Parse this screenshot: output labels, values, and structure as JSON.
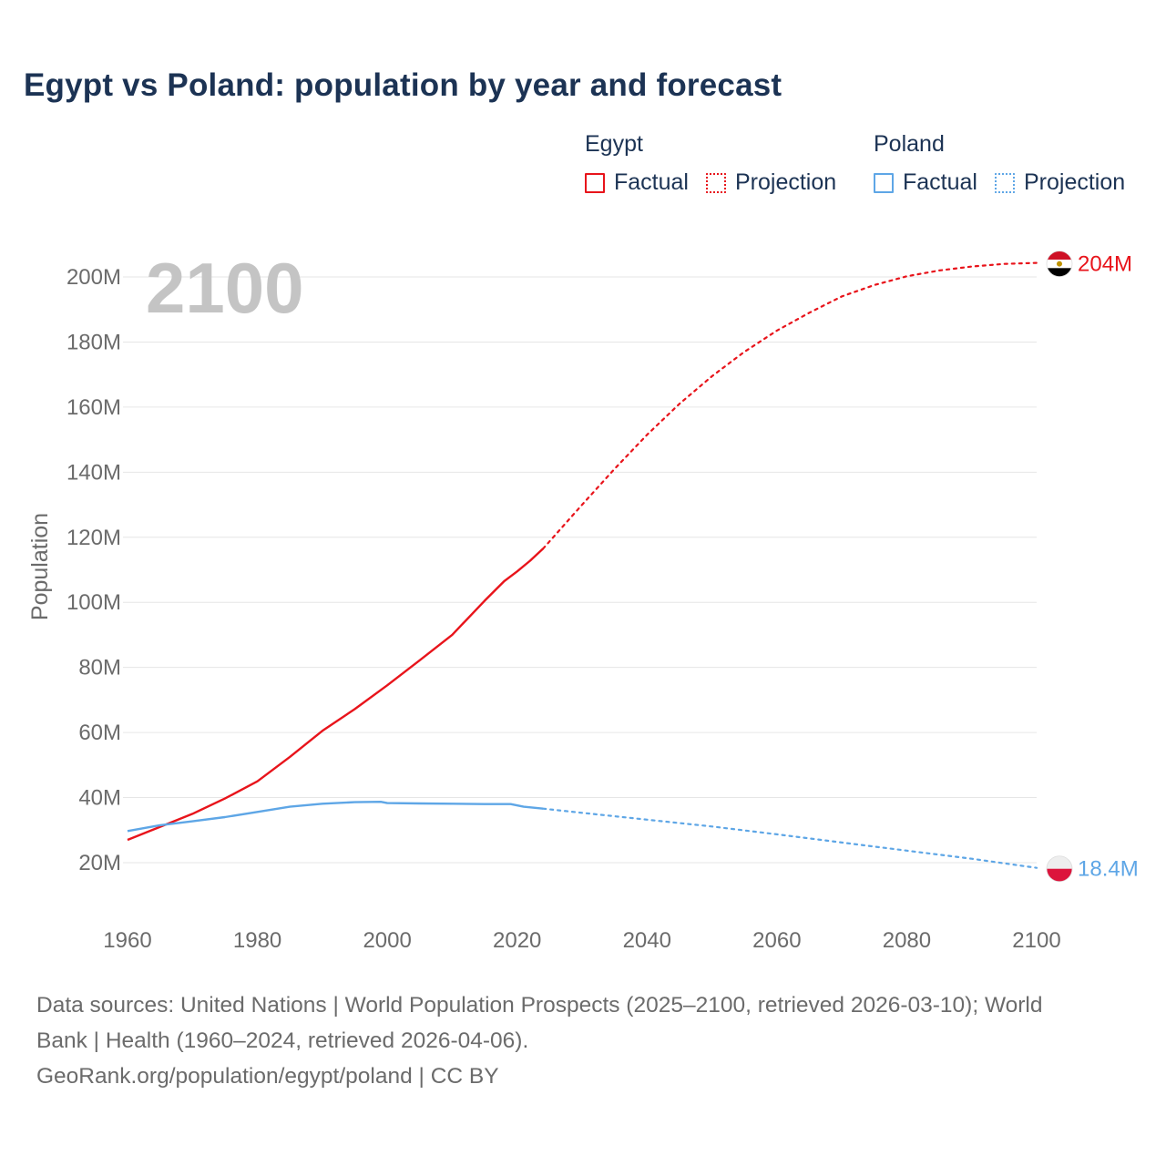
{
  "title": "Egypt vs Poland: population by year and forecast",
  "legend": {
    "groups": [
      {
        "name": "Egypt",
        "color": "#e8141b",
        "items": [
          {
            "label": "Factual",
            "style": "solid"
          },
          {
            "label": "Projection",
            "style": "dotted"
          }
        ]
      },
      {
        "name": "Poland",
        "color": "#5ea6e6",
        "items": [
          {
            "label": "Factual",
            "style": "solid"
          },
          {
            "label": "Projection",
            "style": "dotted"
          }
        ]
      }
    ]
  },
  "sources": {
    "line1": "Data sources: United Nations | World Population Prospects (2025–2100, retrieved 2026-03-10); World",
    "line2": "Bank | Health (1960–2024, retrieved 2026-04-06).",
    "line3": "GeoRank.org/population/egypt/poland | CC BY"
  },
  "chart_data": {
    "type": "line",
    "title": "Egypt vs Poland: population by year and forecast",
    "ylabel": "Population",
    "xlabel": "",
    "current_year_label": "2100",
    "xlim": [
      1960,
      2100
    ],
    "ylim": [
      10000000,
      210000000
    ],
    "x_ticks": [
      1960,
      1980,
      2000,
      2020,
      2040,
      2060,
      2080,
      2100
    ],
    "x_tick_labels": [
      "1960",
      "1980",
      "2000",
      "2020",
      "2040",
      "2060",
      "2080",
      "2100"
    ],
    "y_ticks": [
      20000000,
      40000000,
      60000000,
      80000000,
      100000000,
      120000000,
      140000000,
      160000000,
      180000000,
      200000000
    ],
    "y_tick_labels": [
      "20M",
      "40M",
      "60M",
      "80M",
      "100M",
      "120M",
      "140M",
      "160M",
      "180M",
      "200M"
    ],
    "grid": true,
    "series": [
      {
        "name": "Egypt",
        "color": "#e8141b",
        "end_label": "204M",
        "flag_colors": [
          "#ce1126",
          "#ffffff",
          "#000000"
        ],
        "factual": {
          "x": [
            1960,
            1965,
            1970,
            1975,
            1980,
            1985,
            1990,
            1995,
            2000,
            2005,
            2010,
            2015,
            2018,
            2020,
            2022,
            2024
          ],
          "y": [
            27000000,
            31000000,
            35000000,
            39700000,
            45000000,
            52500000,
            60500000,
            67200000,
            74500000,
            82200000,
            90000000,
            100500000,
            106500000,
            109500000,
            112800000,
            116500000
          ]
        },
        "projection": {
          "x": [
            2024,
            2030,
            2035,
            2040,
            2045,
            2050,
            2055,
            2060,
            2065,
            2070,
            2075,
            2080,
            2085,
            2090,
            2095,
            2100
          ],
          "y": [
            116500000,
            130000000,
            141000000,
            151500000,
            161000000,
            169500000,
            177000000,
            183500000,
            189000000,
            194000000,
            197500000,
            200200000,
            202000000,
            203200000,
            204000000,
            204300000
          ]
        }
      },
      {
        "name": "Poland",
        "color": "#5ea6e6",
        "end_label": "18.4M",
        "flag_colors": [
          "#eeeeee",
          "#dc143c"
        ],
        "factual": {
          "x": [
            1960,
            1965,
            1970,
            1975,
            1980,
            1985,
            1990,
            1995,
            1999,
            2000,
            2005,
            2010,
            2015,
            2019,
            2021,
            2024
          ],
          "y": [
            29700000,
            31500000,
            32700000,
            34000000,
            35600000,
            37200000,
            38100000,
            38600000,
            38700000,
            38300000,
            38200000,
            38100000,
            38000000,
            38000000,
            37200000,
            36600000
          ]
        },
        "projection": {
          "x": [
            2024,
            2030,
            2040,
            2050,
            2060,
            2070,
            2080,
            2090,
            2100
          ],
          "y": [
            36600000,
            35300000,
            33200000,
            31100000,
            28700000,
            26200000,
            23700000,
            21200000,
            18400000
          ]
        }
      }
    ]
  }
}
